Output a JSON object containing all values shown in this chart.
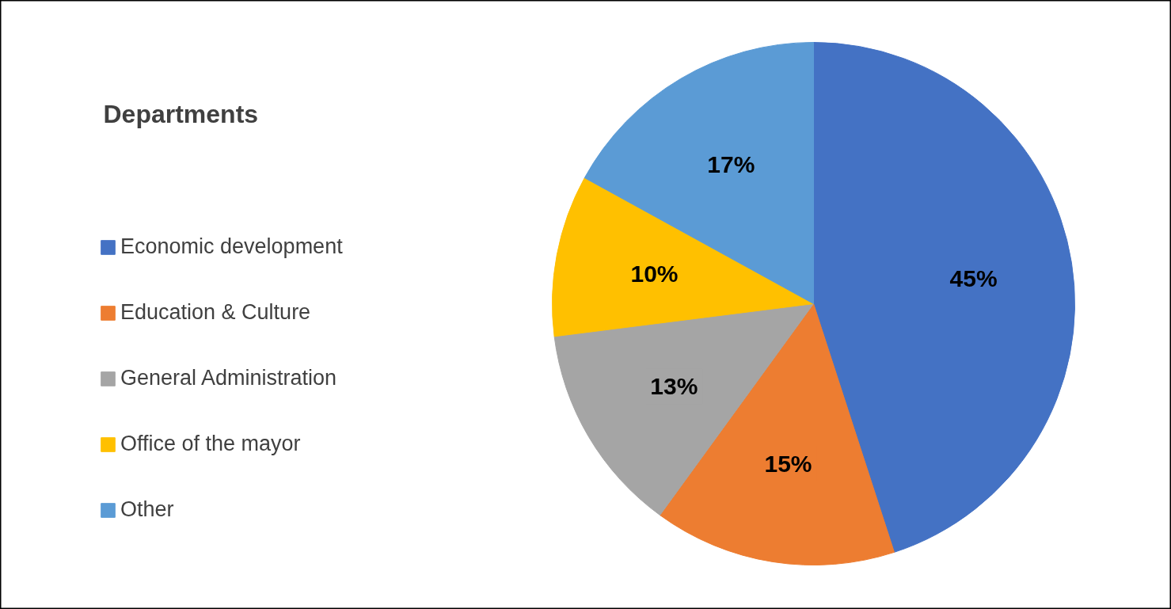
{
  "chart_data": {
    "type": "pie",
    "title": "Departments",
    "categories": [
      "Economic development",
      "Education & Culture",
      "General Administration",
      "Office of the mayor",
      "Other"
    ],
    "values": [
      45,
      15,
      13,
      10,
      17
    ],
    "colors": [
      "#4472c4",
      "#ed7d31",
      "#a5a5a5",
      "#ffc000",
      "#5b9bd5"
    ],
    "value_labels": [
      "45%",
      "15%",
      "13%",
      "10%",
      "17%"
    ],
    "legend": "left"
  }
}
